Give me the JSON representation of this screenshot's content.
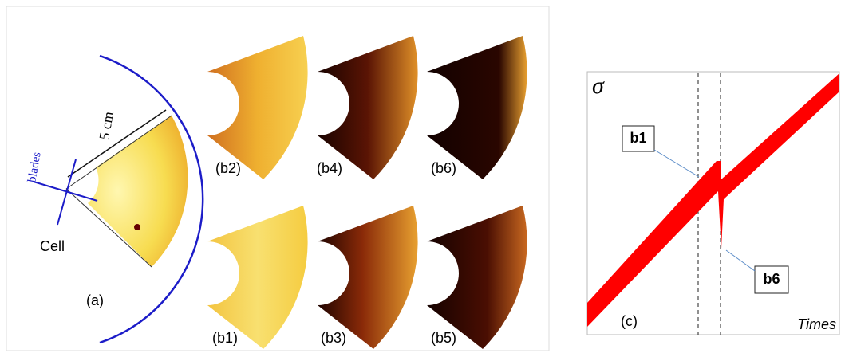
{
  "panel_a": {
    "blades": "blades",
    "length": "5 cm",
    "cell": "Cell",
    "label": "(a)"
  },
  "panel_b": {
    "b2": "(b2)",
    "b4": "(b4)",
    "b6": "(b6)",
    "b1": "(b1)",
    "b3": "(b3)",
    "b5": "(b5)"
  },
  "panel_c": {
    "y_label": "σ",
    "x_label": "Times",
    "label": "(c)",
    "callout_1": "b1",
    "callout_2": "b6"
  }
}
